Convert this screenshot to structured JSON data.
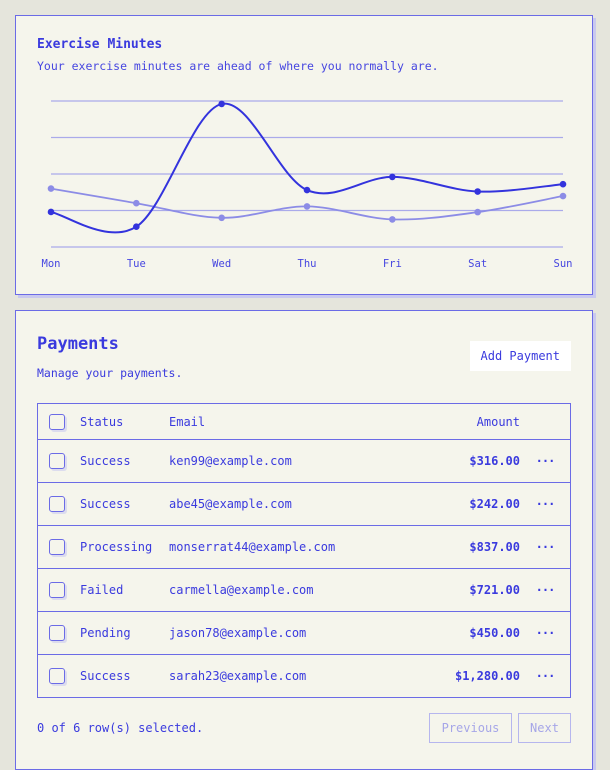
{
  "chart_card": {
    "title": "Exercise Minutes",
    "subtitle": "Your exercise minutes are ahead of where you normally are."
  },
  "chart_data": {
    "type": "line",
    "categories": [
      "Mon",
      "Tue",
      "Wed",
      "Thu",
      "Fri",
      "Sat",
      "Sun"
    ],
    "series": [
      {
        "values": [
          240,
          139,
          980,
          390,
          480,
          380,
          430
        ],
        "color": "#3333dd"
      },
      {
        "values": [
          400,
          300,
          200,
          278,
          189,
          239,
          349
        ],
        "color": "#8c8ce6"
      }
    ],
    "ylim": [
      0,
      1000
    ],
    "grid": true,
    "curve": "smooth"
  },
  "payments": {
    "title": "Payments",
    "subtitle": "Manage your payments.",
    "add_label": "Add Payment",
    "columns": {
      "status": "Status",
      "email": "Email",
      "amount": "Amount"
    },
    "rows": [
      {
        "status": "Success",
        "email": "ken99@example.com",
        "amount": "$316.00"
      },
      {
        "status": "Success",
        "email": "abe45@example.com",
        "amount": "$242.00"
      },
      {
        "status": "Processing",
        "email": "monserrat44@example.com",
        "amount": "$837.00"
      },
      {
        "status": "Failed",
        "email": "carmella@example.com",
        "amount": "$721.00"
      },
      {
        "status": "Pending",
        "email": "jason78@example.com",
        "amount": "$450.00"
      },
      {
        "status": "Success",
        "email": "sarah23@example.com",
        "amount": "$1,280.00"
      }
    ],
    "row_action": "···",
    "selection": "0 of 6 row(s) selected.",
    "previous_label": "Previous",
    "next_label": "Next"
  }
}
